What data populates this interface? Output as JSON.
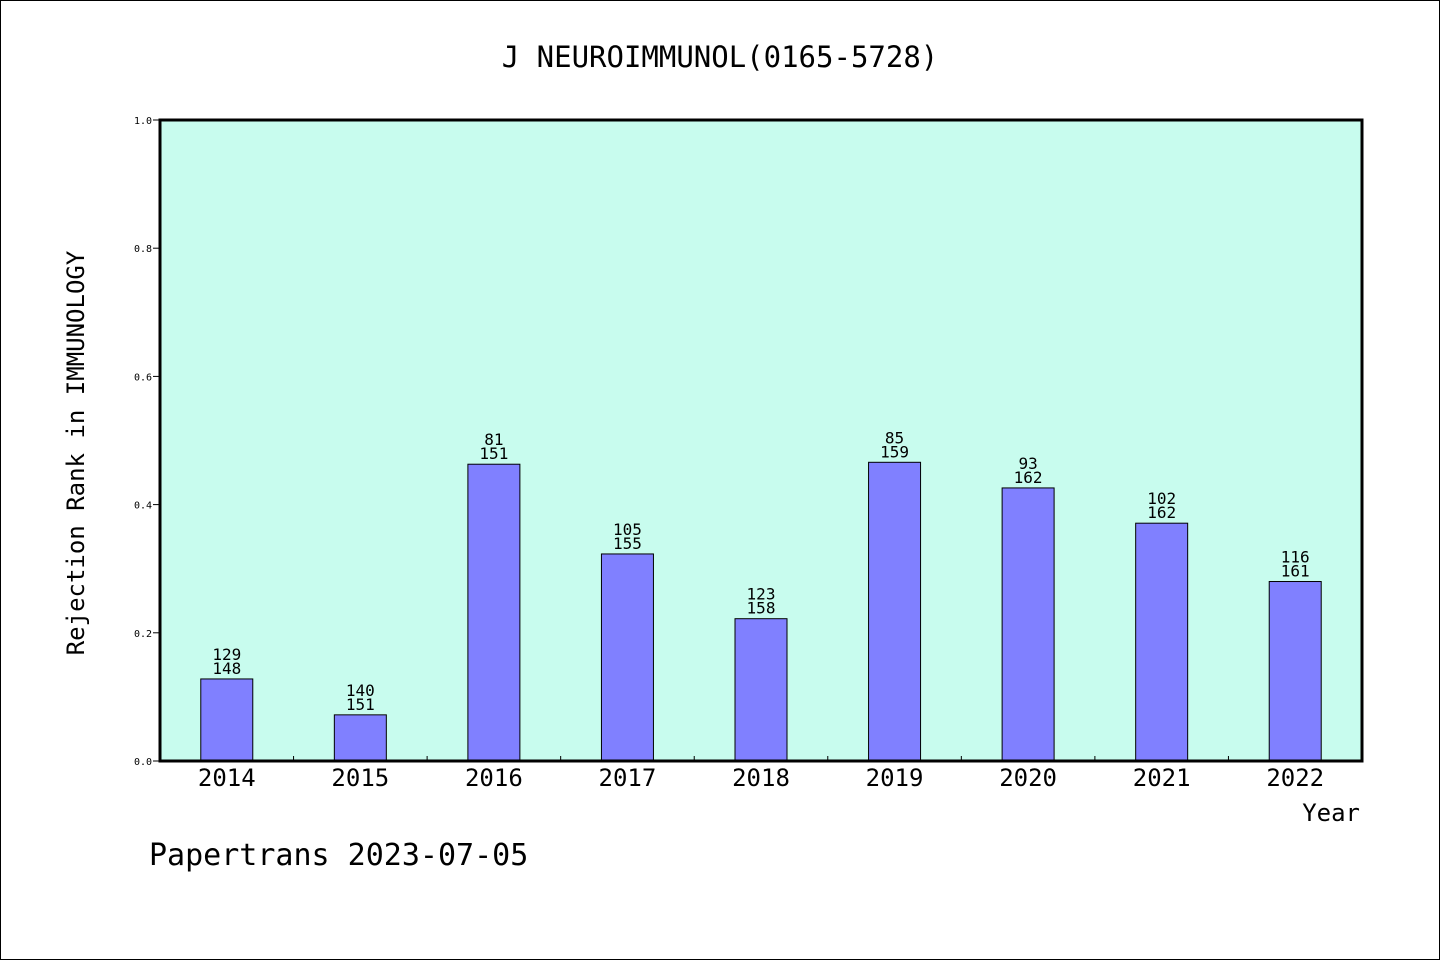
{
  "chart_data": {
    "type": "bar",
    "title": "J NEUROIMMUNOL(0165-5728)",
    "xlabel": "Year",
    "ylabel": "Rejection Rank in IMMUNOLOGY",
    "ylim": [
      0,
      1.0
    ],
    "yticks": [
      "0.0",
      "0.2",
      "0.4",
      "0.6",
      "0.8",
      "1.0"
    ],
    "categories": [
      "2014",
      "2015",
      "2016",
      "2017",
      "2018",
      "2019",
      "2020",
      "2021",
      "2022"
    ],
    "values": [
      0.128,
      0.072,
      0.463,
      0.323,
      0.222,
      0.466,
      0.426,
      0.371,
      0.28
    ],
    "bar_labels": [
      [
        "129",
        "148"
      ],
      [
        "140",
        "151"
      ],
      [
        "81",
        "151"
      ],
      [
        "105",
        "155"
      ],
      [
        "123",
        "158"
      ],
      [
        "85",
        "159"
      ],
      [
        "93",
        "162"
      ],
      [
        "102",
        "162"
      ],
      [
        "116",
        "161"
      ]
    ],
    "grid": false,
    "colors": {
      "plot_background": "#c8fcee",
      "bar_fill": "#8080ff",
      "bar_stroke": "#000000"
    }
  },
  "footer": {
    "text": "Papertrans 2023-07-05"
  }
}
